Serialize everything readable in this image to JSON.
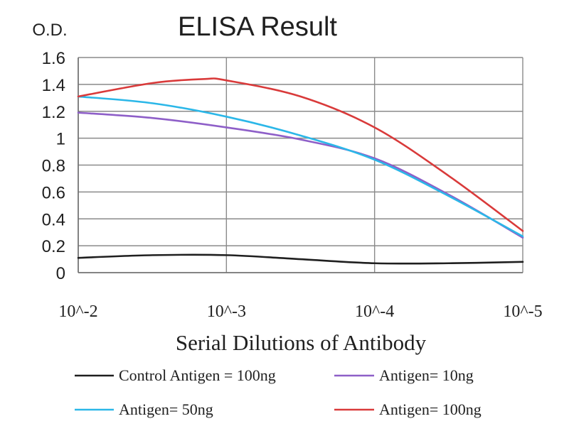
{
  "chart_data": {
    "type": "line",
    "title": "ELISA Result",
    "ylabel": "O.D.",
    "xlabel": "Serial Dilutions of Antibody",
    "x": [
      "10^-2",
      "10^-3",
      "10^-4",
      "10^-5"
    ],
    "ylim": [
      0,
      1.6
    ],
    "yticks": [
      "0",
      "0.2",
      "0.4",
      "0.6",
      "0.8",
      "1",
      "1.2",
      "1.4",
      "1.6"
    ],
    "grid": true,
    "legend_position": "bottom",
    "series": [
      {
        "name": "Control Antigen = 100ng",
        "color": "#1f1f1f",
        "x": [
          0,
          0.5,
          1,
          1.5,
          2,
          2.5,
          3
        ],
        "values": [
          0.11,
          0.13,
          0.13,
          0.1,
          0.07,
          0.07,
          0.08
        ]
      },
      {
        "name": "Antigen= 10ng",
        "color": "#8e5fc8",
        "x": [
          0,
          0.5,
          1,
          1.5,
          2,
          2.5,
          3
        ],
        "values": [
          1.19,
          1.15,
          1.08,
          0.99,
          0.85,
          0.58,
          0.26
        ]
      },
      {
        "name": "Antigen= 50ng",
        "color": "#2bb7e8",
        "x": [
          0,
          0.5,
          1,
          1.5,
          2,
          2.5,
          3
        ],
        "values": [
          1.31,
          1.26,
          1.16,
          1.02,
          0.84,
          0.57,
          0.27
        ]
      },
      {
        "name": "Antigen= 100ng",
        "color": "#d93a3a",
        "x": [
          0,
          0.5,
          0.85,
          1,
          1.5,
          2,
          2.5,
          3
        ],
        "values": [
          1.31,
          1.41,
          1.44,
          1.43,
          1.31,
          1.08,
          0.72,
          0.31
        ]
      }
    ]
  }
}
